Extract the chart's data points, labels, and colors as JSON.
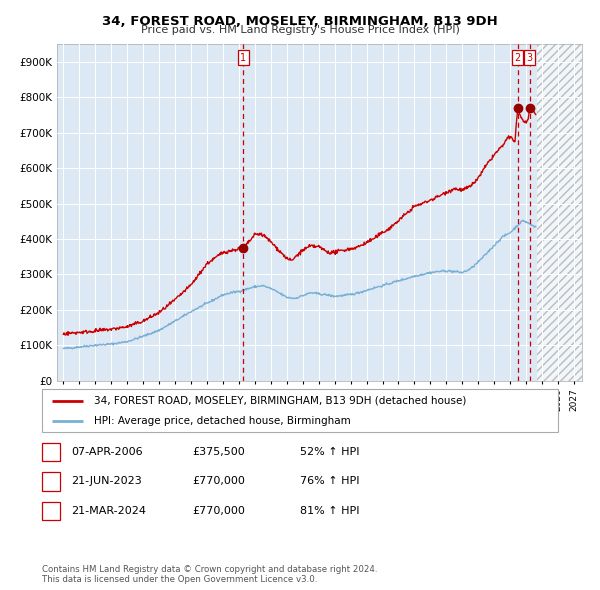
{
  "title": "34, FOREST ROAD, MOSELEY, BIRMINGHAM, B13 9DH",
  "subtitle": "Price paid vs. HM Land Registry's House Price Index (HPI)",
  "bg_color": "#dce9f5",
  "grid_color": "#ffffff",
  "red_line_color": "#cc0000",
  "blue_line_color": "#7aafd4",
  "dashed_vline_color": "#cc0000",
  "ylim": [
    0,
    950000
  ],
  "yticks": [
    0,
    100000,
    200000,
    300000,
    400000,
    500000,
    600000,
    700000,
    800000,
    900000
  ],
  "ytick_labels": [
    "£0",
    "£100K",
    "£200K",
    "£300K",
    "£400K",
    "£500K",
    "£600K",
    "£700K",
    "£800K",
    "£900K"
  ],
  "xtick_years": [
    1995,
    1996,
    1997,
    1998,
    1999,
    2000,
    2001,
    2002,
    2003,
    2004,
    2005,
    2006,
    2007,
    2008,
    2009,
    2010,
    2011,
    2012,
    2013,
    2014,
    2015,
    2016,
    2017,
    2018,
    2019,
    2020,
    2021,
    2022,
    2023,
    2024,
    2025,
    2026,
    2027
  ],
  "sale_marker_color": "#990000",
  "annotation_box_color": "#cc0000",
  "annotation_text_color": "#cc0000",
  "footer_text": "Contains HM Land Registry data © Crown copyright and database right 2024.\nThis data is licensed under the Open Government Licence v3.0.",
  "legend_line1": "34, FOREST ROAD, MOSELEY, BIRMINGHAM, B13 9DH (detached house)",
  "legend_line2": "HPI: Average price, detached house, Birmingham",
  "table_rows": [
    {
      "num": "1",
      "date": "07-APR-2006",
      "price": "£375,500",
      "hpi": "52% ↑ HPI"
    },
    {
      "num": "2",
      "date": "21-JUN-2023",
      "price": "£770,000",
      "hpi": "76% ↑ HPI"
    },
    {
      "num": "3",
      "date": "21-MAR-2024",
      "price": "£770,000",
      "hpi": "81% ↑ HPI"
    }
  ],
  "vline1_x": 2006.27,
  "vline2_x": 2023.47,
  "vline3_x": 2024.22,
  "sale1_x": 2006.27,
  "sale1_y": 375500,
  "sale2_x": 2023.47,
  "sale2_y": 770000,
  "sale3_x": 2024.22,
  "sale3_y": 770000
}
